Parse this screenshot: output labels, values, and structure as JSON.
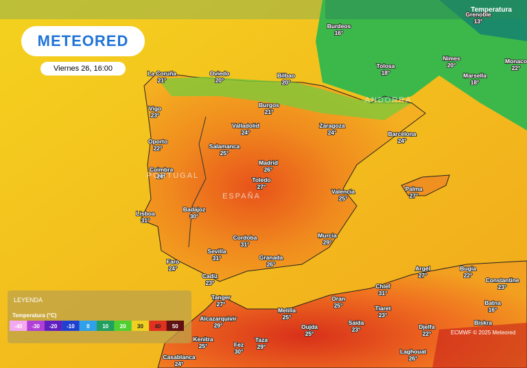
{
  "header": {
    "logo": "METEORED",
    "date": "Viernes 26, 16:00",
    "layer": "Temperatura"
  },
  "regions": [
    "PORTUGAL",
    "ESPAÑA",
    "ANDORRA"
  ],
  "cities": [
    {
      "name": "Burdeos",
      "temp": "16°"
    },
    {
      "name": "Oviedo",
      "temp": "20°"
    },
    {
      "name": "La Coruña",
      "temp": "21°"
    },
    {
      "name": "Bilbao",
      "temp": "20°"
    },
    {
      "name": "Tolosa",
      "temp": "18°"
    },
    {
      "name": "Nimes",
      "temp": "20°"
    },
    {
      "name": "Marsella",
      "temp": "18°"
    },
    {
      "name": "Monaco",
      "temp": "22°"
    },
    {
      "name": "Grenoble",
      "temp": "13°"
    },
    {
      "name": "Vigo",
      "temp": "23°"
    },
    {
      "name": "Burgos",
      "temp": "21°"
    },
    {
      "name": "Valladolid",
      "temp": "24°"
    },
    {
      "name": "Zaragoza",
      "temp": "24°"
    },
    {
      "name": "Barcelona",
      "temp": "24°"
    },
    {
      "name": "Oporto",
      "temp": "22°"
    },
    {
      "name": "Salamanca",
      "temp": "25°"
    },
    {
      "name": "Madrid",
      "temp": "26°"
    },
    {
      "name": "Coimbra",
      "temp": "26°"
    },
    {
      "name": "Toledo",
      "temp": "27°"
    },
    {
      "name": "Valencia",
      "temp": "25°"
    },
    {
      "name": "Palma",
      "temp": "27°"
    },
    {
      "name": "Lisboa",
      "temp": "31°"
    },
    {
      "name": "Badajoz",
      "temp": "30°"
    },
    {
      "name": "Cordoba",
      "temp": "31°"
    },
    {
      "name": "Murcia",
      "temp": "29°"
    },
    {
      "name": "Sevilla",
      "temp": "31°"
    },
    {
      "name": "Granada",
      "temp": "26°"
    },
    {
      "name": "Faro",
      "temp": "24°"
    },
    {
      "name": "Argel",
      "temp": "27°"
    },
    {
      "name": "Bugia",
      "temp": "22°"
    },
    {
      "name": "Cadiz",
      "temp": "23°"
    },
    {
      "name": "Constantine",
      "temp": "23°"
    },
    {
      "name": "Chlef",
      "temp": "31°"
    },
    {
      "name": "Tanger",
      "temp": "27°"
    },
    {
      "name": "Oran",
      "temp": "25°"
    },
    {
      "name": "Batna",
      "temp": "16°"
    },
    {
      "name": "Tiaret",
      "temp": "23°"
    },
    {
      "name": "Melilla",
      "temp": "25°"
    },
    {
      "name": "Alcazarquivir",
      "temp": "29°"
    },
    {
      "name": "Saida",
      "temp": "23°"
    },
    {
      "name": "Oujda",
      "temp": "25°"
    },
    {
      "name": "Djelfa",
      "temp": "22°"
    },
    {
      "name": "Kenitra",
      "temp": "25°"
    },
    {
      "name": "Fez",
      "temp": "30°"
    },
    {
      "name": "Taza",
      "temp": "29°"
    },
    {
      "name": "Laghouat",
      "temp": "26°"
    },
    {
      "name": "Casablanca",
      "temp": "24°"
    },
    {
      "name": "Biskra"
    }
  ],
  "legend": {
    "title": "LEYENDA",
    "subtitle": "Temperatura (°C)",
    "ticks": [
      "-40",
      "-30",
      "-20",
      "-10",
      "0",
      "10",
      "20",
      "30",
      "40",
      "50"
    ]
  },
  "attribution": "ECMWF © 2025 Meteored"
}
